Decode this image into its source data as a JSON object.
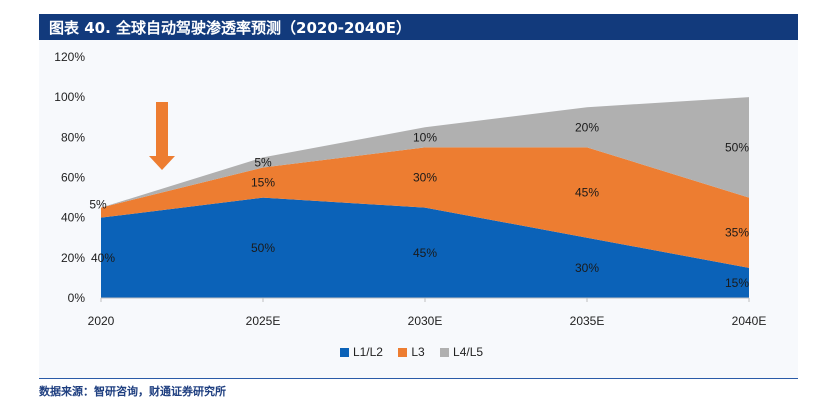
{
  "title": "图表 40. 全球自动驾驶渗透率预测（2020-2040E）",
  "source": "数据来源：智研咨询，财通证券研究所",
  "colors": {
    "title_bar": "#123a7c",
    "series": [
      "#0b62b8",
      "#ed7d31",
      "#b0b0b0"
    ],
    "arrow": "#ed7d31"
  },
  "chart_data": {
    "type": "area",
    "stacked": true,
    "categories": [
      "2020",
      "2025E",
      "2030E",
      "2035E",
      "2040E"
    ],
    "series": [
      {
        "name": "L1/L2",
        "values": [
          40,
          50,
          45,
          30,
          15
        ]
      },
      {
        "name": "L3",
        "values": [
          5,
          15,
          30,
          45,
          35
        ]
      },
      {
        "name": "L4/L5",
        "values": [
          0,
          5,
          10,
          20,
          50
        ]
      }
    ],
    "data_labels": [
      [
        "40%",
        "50%",
        "45%",
        "30%",
        "15%"
      ],
      [
        "5%",
        "15%",
        "30%",
        "45%",
        "35%"
      ],
      [
        "",
        "5%",
        "10%",
        "20%",
        "50%"
      ]
    ],
    "y_ticks": [
      "0%",
      "20%",
      "40%",
      "60%",
      "80%",
      "100%",
      "120%"
    ],
    "ylim": [
      0,
      120
    ],
    "legend_position": "bottom",
    "grid": false,
    "annotation": "down-arrow"
  }
}
